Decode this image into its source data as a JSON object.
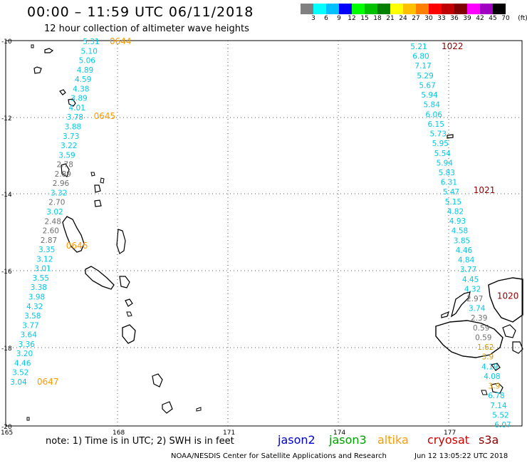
{
  "title": "00:00 – 11:59 UTC 06/11/2018",
  "subtitle": "12 hour collection of altimeter wave heights",
  "colorbar": {
    "colors": [
      "#808080",
      "#00ffff",
      "#00c0ff",
      "#0000ff",
      "#00ff00",
      "#00c000",
      "#008000",
      "#ffff00",
      "#ffc000",
      "#ff8000",
      "#ff0000",
      "#c00000",
      "#800000",
      "#ff00ff",
      "#a000c0",
      "#000000"
    ],
    "ticks": [
      "3",
      "6",
      "9",
      "12",
      "15",
      "18",
      "21",
      "24",
      "27",
      "30",
      "33",
      "36",
      "39",
      "42",
      "45",
      "70",
      "(ft)"
    ]
  },
  "axes": {
    "lat_labels": [
      "-10",
      "-12",
      "-14",
      "-16",
      "-18",
      "-20"
    ],
    "lon_labels": [
      "165",
      "168",
      "171",
      "174",
      "177"
    ]
  },
  "tracks": [
    {
      "name": "west",
      "times": [
        {
          "label": "0644",
          "color": "#ff9900"
        },
        {
          "label": "0645",
          "color": "#ff9900"
        },
        {
          "label": "0646",
          "color": "#ff9900"
        },
        {
          "label": "0647",
          "color": "#ff9900"
        }
      ],
      "values": [
        {
          "v": "5.31",
          "c": "#00c8e6"
        },
        {
          "v": "5.10",
          "c": "#00c8e6"
        },
        {
          "v": "5.06",
          "c": "#00c8e6"
        },
        {
          "v": "4.89",
          "c": "#00c8e6"
        },
        {
          "v": "4.59",
          "c": "#00c8e6"
        },
        {
          "v": "4.38",
          "c": "#00c8e6"
        },
        {
          "v": "3.89",
          "c": "#00c8e6"
        },
        {
          "v": "4.01",
          "c": "#00c8e6"
        },
        {
          "v": "3.78",
          "c": "#00c8e6"
        },
        {
          "v": "3.88",
          "c": "#00c8e6"
        },
        {
          "v": "3.73",
          "c": "#00c8e6"
        },
        {
          "v": "3.22",
          "c": "#00c8e6"
        },
        {
          "v": "3.59",
          "c": "#00c8e6"
        },
        {
          "v": "2.78",
          "c": "#707070"
        },
        {
          "v": "2.89",
          "c": "#707070"
        },
        {
          "v": "2.96",
          "c": "#707070"
        },
        {
          "v": "3.32",
          "c": "#00c8e6"
        },
        {
          "v": "2.70",
          "c": "#707070"
        },
        {
          "v": "3.02",
          "c": "#00c8e6"
        },
        {
          "v": "2.48",
          "c": "#707070"
        },
        {
          "v": "2.60",
          "c": "#707070"
        },
        {
          "v": "2.87",
          "c": "#707070"
        },
        {
          "v": "3.35",
          "c": "#00c8e6"
        },
        {
          "v": "3.12",
          "c": "#00c8e6"
        },
        {
          "v": "3.01",
          "c": "#00c8e6"
        },
        {
          "v": "3.55",
          "c": "#00c8e6"
        },
        {
          "v": "3.38",
          "c": "#00c8e6"
        },
        {
          "v": "3.98",
          "c": "#00c8e6"
        },
        {
          "v": "4.32",
          "c": "#00c8e6"
        },
        {
          "v": "3.58",
          "c": "#00c8e6"
        },
        {
          "v": "3.77",
          "c": "#00c8e6"
        },
        {
          "v": "3.64",
          "c": "#00c8e6"
        },
        {
          "v": "3.36",
          "c": "#00c8e6"
        },
        {
          "v": "3.20",
          "c": "#00c8e6"
        },
        {
          "v": "4.46",
          "c": "#00c8e6"
        },
        {
          "v": "3.52",
          "c": "#00c8e6"
        },
        {
          "v": "3.04",
          "c": "#00c8e6"
        }
      ]
    },
    {
      "name": "east",
      "times": [
        {
          "label": "1022",
          "color": "#8b0000"
        },
        {
          "label": "1021",
          "color": "#8b0000"
        },
        {
          "label": "1020",
          "color": "#8b0000"
        }
      ],
      "values": [
        {
          "v": "5.21",
          "c": "#00c8e6"
        },
        {
          "v": "6.80",
          "c": "#00c8e6"
        },
        {
          "v": "7.17",
          "c": "#00c8e6"
        },
        {
          "v": "5.29",
          "c": "#00c8e6"
        },
        {
          "v": "5.67",
          "c": "#00c8e6"
        },
        {
          "v": "5.94",
          "c": "#00c8e6"
        },
        {
          "v": "5.84",
          "c": "#00c8e6"
        },
        {
          "v": "6.06",
          "c": "#00c8e6"
        },
        {
          "v": "6.15",
          "c": "#00c8e6"
        },
        {
          "v": "5.73",
          "c": "#00c8e6"
        },
        {
          "v": "5.95",
          "c": "#00c8e6"
        },
        {
          "v": "5.54",
          "c": "#00c8e6"
        },
        {
          "v": "5.94",
          "c": "#00c8e6"
        },
        {
          "v": "5.83",
          "c": "#00c8e6"
        },
        {
          "v": "6.31",
          "c": "#00c8e6"
        },
        {
          "v": "5.47",
          "c": "#00c8e6"
        },
        {
          "v": "5.15",
          "c": "#00c8e6"
        },
        {
          "v": "4.82",
          "c": "#00c8e6"
        },
        {
          "v": "4.93",
          "c": "#00c8e6"
        },
        {
          "v": "4.58",
          "c": "#00c8e6"
        },
        {
          "v": "3.85",
          "c": "#00c8e6"
        },
        {
          "v": "4.46",
          "c": "#00c8e6"
        },
        {
          "v": "4.84",
          "c": "#00c8e6"
        },
        {
          "v": "3.77",
          "c": "#00c8e6"
        },
        {
          "v": "4.45",
          "c": "#00c8e6"
        },
        {
          "v": "4.32",
          "c": "#00c8e6"
        },
        {
          "v": "2.97",
          "c": "#707070"
        },
        {
          "v": "3.74",
          "c": "#00c8e6"
        },
        {
          "v": "2.39",
          "c": "#707070"
        },
        {
          "v": "0.59",
          "c": "#707070"
        },
        {
          "v": "0.59",
          "c": "#707070"
        },
        {
          "v": "1.62",
          "c": "#d49a00"
        },
        {
          "v": "3.9",
          "c": "#d49a00"
        },
        {
          "v": "4.19",
          "c": "#00c8e6"
        },
        {
          "v": "4.08",
          "c": "#00c8e6"
        },
        {
          "v": "3.9",
          "c": "#d49a00"
        },
        {
          "v": "6.78",
          "c": "#00c8e6"
        },
        {
          "v": "7.14",
          "c": "#00c8e6"
        },
        {
          "v": "5.52",
          "c": "#00c8e6"
        },
        {
          "v": "6.07",
          "c": "#00c8e6"
        }
      ]
    }
  ],
  "note": "note: 1) Time is in UTC; 2) SWH is in feet",
  "legend": [
    {
      "label": "jason2",
      "color": "#0000cc"
    },
    {
      "label": "jason3",
      "color": "#00a000"
    },
    {
      "label": "altika",
      "color": "#ff9900"
    },
    {
      "label": "cryosat",
      "color": "#cc0000"
    },
    {
      "label": "s3a",
      "color": "#8b0000"
    }
  ],
  "footer_left": "NOAA/NESDIS Center for Satellite Applications and Research",
  "footer_right": "Jun 12 13:05:22 UTC 2018"
}
